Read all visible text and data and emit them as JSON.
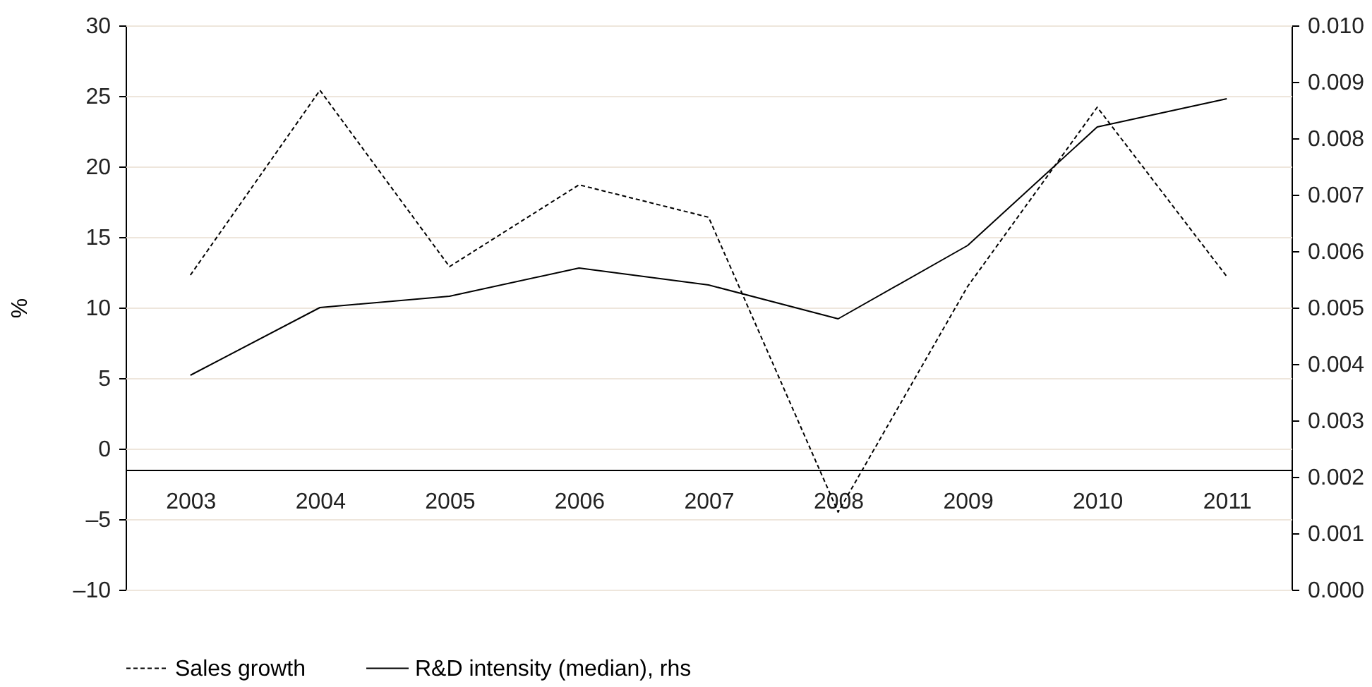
{
  "chart_data": {
    "type": "line",
    "ylabel": "%",
    "categories": [
      "2003",
      "2004",
      "2005",
      "2006",
      "2007",
      "2008",
      "2009",
      "2010",
      "2011"
    ],
    "series": [
      {
        "name": "Sales growth",
        "color": "#000000",
        "line_style": "dashed",
        "values": [
          12.3,
          25.4,
          12.9,
          18.7,
          16.4,
          -4.5,
          11.5,
          24.2,
          12.2
        ]
      },
      {
        "name": "R&D intensity (median), rhs",
        "color": "#000000",
        "line_style": "solid",
        "axis": "y2",
        "values": [
          0.0038,
          0.005,
          0.0052,
          0.0057,
          0.0054,
          0.0048,
          0.0061,
          0.0082,
          0.0087
        ]
      }
    ],
    "ylim": [
      -10,
      30
    ],
    "yticks": [
      {
        "value": -10,
        "label": "–10"
      },
      {
        "value": -5,
        "label": "–5"
      },
      0,
      5,
      10,
      15,
      20,
      25,
      30
    ],
    "y2lim": [
      0,
      0.01
    ],
    "y2ticks": [
      {
        "value": 0,
        "label": "0.000"
      },
      {
        "value": 0.001,
        "label": "0.001"
      },
      {
        "value": 0.002,
        "label": "0.002"
      },
      {
        "value": 0.003,
        "label": "0.003"
      },
      {
        "value": 0.004,
        "label": "0.004"
      },
      {
        "value": 0.005,
        "label": "0.005"
      },
      {
        "value": 0.006,
        "label": "0.006"
      },
      {
        "value": 0.007,
        "label": "0.007"
      },
      {
        "value": 0.008,
        "label": "0.008"
      },
      {
        "value": 0.009,
        "label": "0.009"
      },
      {
        "value": 0.01,
        "label": "0.010"
      }
    ],
    "grid": "y",
    "legend": "bottom"
  }
}
